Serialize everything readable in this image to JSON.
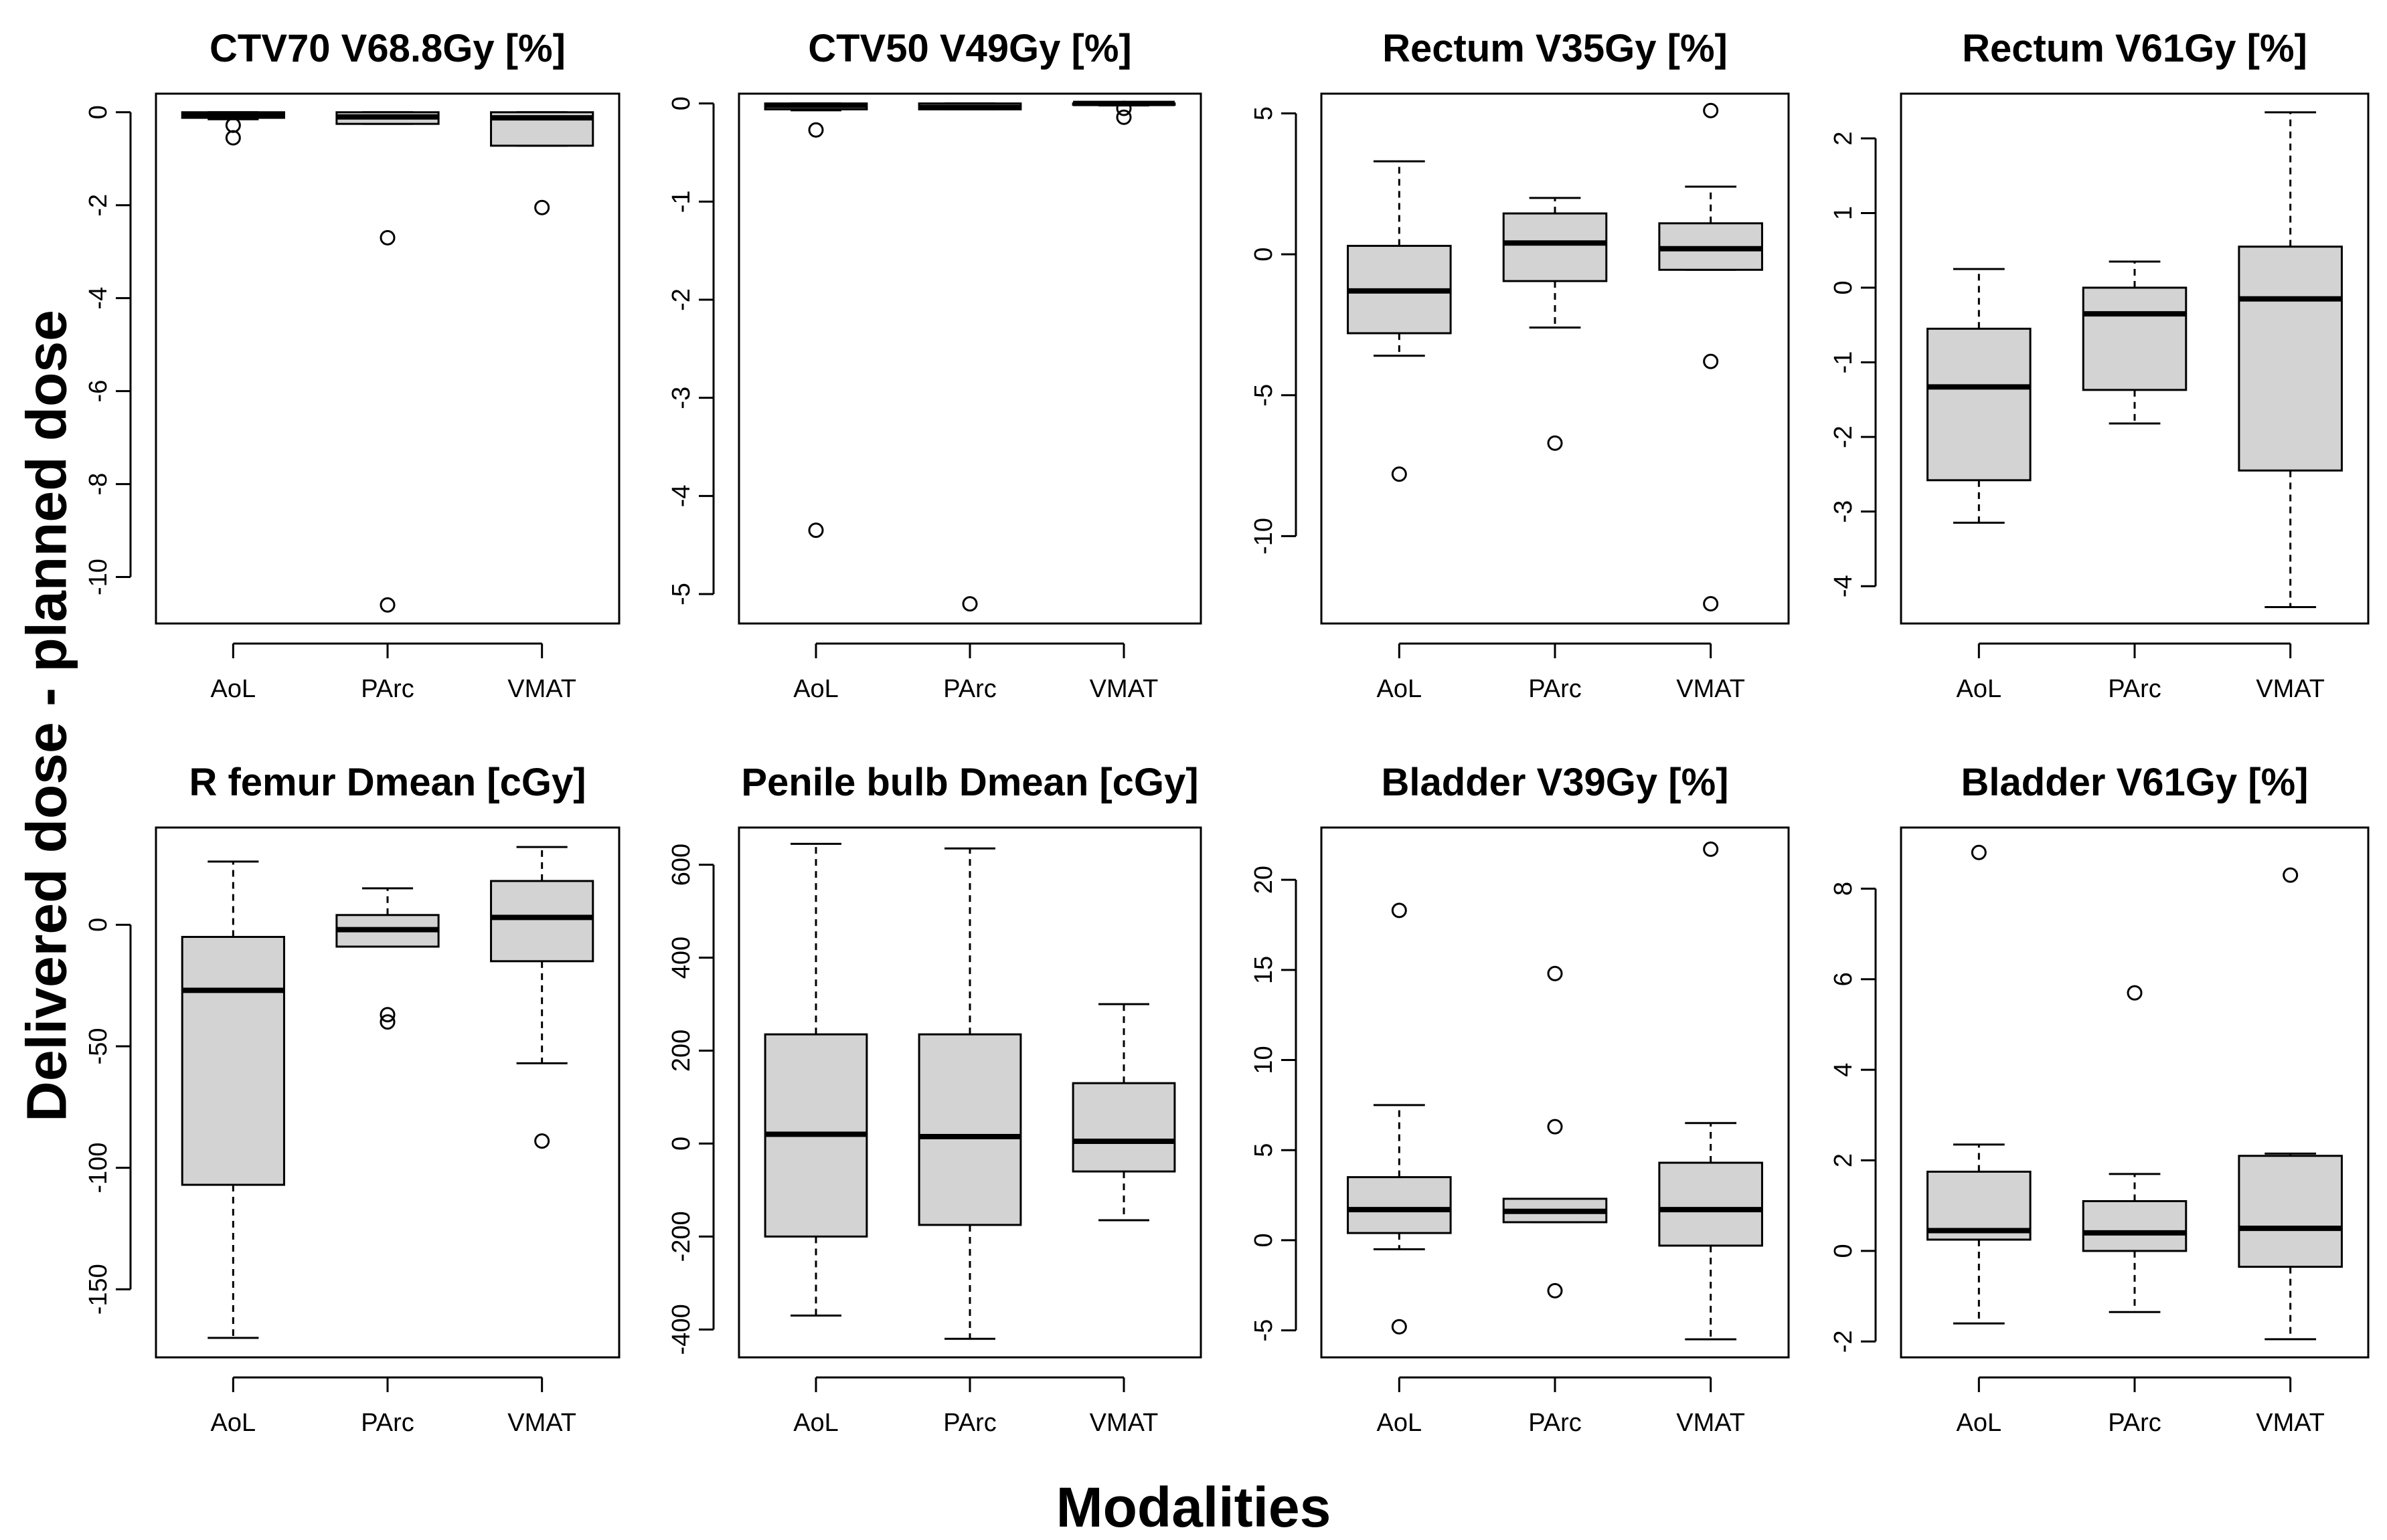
{
  "figure": {
    "ylabel": "Delivered dose - planned dose",
    "xlabel": "Modalities"
  },
  "style": {
    "box_fill": "#d3d3d3",
    "line_color": "#000000"
  },
  "chart_data": [
    {
      "type": "box",
      "title": "CTV70 V68.8Gy [%]",
      "categories": [
        "AoL",
        "PArc",
        "VMAT"
      ],
      "ylim": [
        -11,
        0.4
      ],
      "yticks": [
        0,
        -2,
        -4,
        -6,
        -8,
        -10
      ],
      "boxes": [
        {
          "whislo": -0.15,
          "q1": -0.12,
          "med": -0.05,
          "q3": 0.0,
          "whishi": 0.0,
          "fliers": [
            -0.28,
            -0.55
          ]
        },
        {
          "whislo": -0.25,
          "q1": -0.25,
          "med": -0.1,
          "q3": 0.0,
          "whishi": 0.0,
          "fliers": [
            -2.7,
            -10.6
          ]
        },
        {
          "whislo": -0.72,
          "q1": -0.72,
          "med": -0.12,
          "q3": 0.0,
          "whishi": 0.0,
          "fliers": [
            -2.05
          ]
        }
      ]
    },
    {
      "type": "box",
      "title": "CTV50 V49Gy [%]",
      "categories": [
        "AoL",
        "PArc",
        "VMAT"
      ],
      "ylim": [
        -5.3,
        0.1
      ],
      "yticks": [
        0,
        -1,
        -2,
        -3,
        -4,
        -5
      ],
      "boxes": [
        {
          "whislo": -0.07,
          "q1": -0.06,
          "med": -0.02,
          "q3": 0.0,
          "whishi": 0.0,
          "fliers": [
            -0.27,
            -4.35
          ]
        },
        {
          "whislo": -0.06,
          "q1": -0.06,
          "med": -0.04,
          "q3": 0.0,
          "whishi": 0.0,
          "fliers": [
            -5.1
          ]
        },
        {
          "whislo": -0.02,
          "q1": -0.01,
          "med": 0.0,
          "q3": 0.0,
          "whishi": 0.0,
          "fliers": [
            -0.05,
            -0.14
          ]
        }
      ]
    },
    {
      "type": "box",
      "title": "Rectum V35Gy [%]",
      "categories": [
        "AoL",
        "PArc",
        "VMAT"
      ],
      "ylim": [
        -13.1,
        5.7
      ],
      "yticks": [
        5,
        0,
        -5,
        -10
      ],
      "boxes": [
        {
          "whislo": -3.6,
          "q1": -2.8,
          "med": -1.3,
          "q3": 0.3,
          "whishi": 3.3,
          "fliers": [
            -7.8
          ]
        },
        {
          "whislo": -2.6,
          "q1": -0.95,
          "med": 0.4,
          "q3": 1.45,
          "whishi": 2.0,
          "fliers": [
            -6.7
          ]
        },
        {
          "whislo": -0.55,
          "q1": -0.55,
          "med": 0.2,
          "q3": 1.1,
          "whishi": 2.4,
          "fliers": [
            5.1,
            -3.8,
            -12.4
          ]
        }
      ]
    },
    {
      "type": "box",
      "title": "Rectum V61Gy [%]",
      "categories": [
        "AoL",
        "PArc",
        "VMAT"
      ],
      "ylim": [
        -4.5,
        2.6
      ],
      "yticks": [
        2,
        1,
        0,
        -1,
        -2,
        -3,
        -4
      ],
      "boxes": [
        {
          "whislo": -3.15,
          "q1": -2.58,
          "med": -1.33,
          "q3": -0.55,
          "whishi": 0.25,
          "fliers": []
        },
        {
          "whislo": -1.82,
          "q1": -1.37,
          "med": -0.35,
          "q3": 0.0,
          "whishi": 0.35,
          "fliers": []
        },
        {
          "whislo": -4.28,
          "q1": -2.45,
          "med": -0.15,
          "q3": 0.55,
          "whishi": 2.35,
          "fliers": []
        }
      ]
    },
    {
      "type": "box",
      "title": "R femur Dmean [cGy]",
      "categories": [
        "AoL",
        "PArc",
        "VMAT"
      ],
      "ylim": [
        -178,
        40
      ],
      "yticks": [
        0,
        -50,
        -100,
        -150
      ],
      "boxes": [
        {
          "whislo": -170,
          "q1": -107,
          "med": -27,
          "q3": -5,
          "whishi": 26,
          "fliers": []
        },
        {
          "whislo": -9,
          "q1": -9,
          "med": -2,
          "q3": 4,
          "whishi": 15,
          "fliers": [
            -37,
            -40
          ]
        },
        {
          "whislo": -57,
          "q1": -15,
          "med": 3,
          "q3": 18,
          "whishi": 32,
          "fliers": [
            -89
          ]
        }
      ]
    },
    {
      "type": "box",
      "title": "Penile bulb Dmean [cGy]",
      "categories": [
        "AoL",
        "PArc",
        "VMAT"
      ],
      "ylim": [
        -460,
        680
      ],
      "yticks": [
        600,
        400,
        200,
        0,
        -200,
        -400
      ],
      "boxes": [
        {
          "whislo": -370,
          "q1": -200,
          "med": 20,
          "q3": 235,
          "whishi": 645,
          "fliers": []
        },
        {
          "whislo": -420,
          "q1": -175,
          "med": 15,
          "q3": 235,
          "whishi": 635,
          "fliers": []
        },
        {
          "whislo": -165,
          "q1": -60,
          "med": 5,
          "q3": 130,
          "whishi": 300,
          "fliers": []
        }
      ]
    },
    {
      "type": "box",
      "title": "Bladder V39Gy [%]",
      "categories": [
        "AoL",
        "PArc",
        "VMAT"
      ],
      "ylim": [
        -6.5,
        22.9
      ],
      "yticks": [
        20,
        15,
        10,
        5,
        0,
        -5
      ],
      "boxes": [
        {
          "whislo": -0.5,
          "q1": 0.4,
          "med": 1.7,
          "q3": 3.5,
          "whishi": 7.5,
          "fliers": [
            18.3,
            -4.8
          ]
        },
        {
          "whislo": 1.0,
          "q1": 1.0,
          "med": 1.6,
          "q3": 2.3,
          "whishi": 2.3,
          "fliers": [
            14.8,
            6.3,
            -2.8
          ]
        },
        {
          "whislo": -5.5,
          "q1": -0.3,
          "med": 1.7,
          "q3": 4.3,
          "whishi": 6.5,
          "fliers": [
            21.7
          ]
        }
      ]
    },
    {
      "type": "box",
      "title": "Bladder V61Gy [%]",
      "categories": [
        "AoL",
        "PArc",
        "VMAT"
      ],
      "ylim": [
        -2.35,
        9.35
      ],
      "yticks": [
        8,
        6,
        4,
        2,
        0,
        -2
      ],
      "boxes": [
        {
          "whislo": -1.6,
          "q1": 0.25,
          "med": 0.45,
          "q3": 1.75,
          "whishi": 2.35,
          "fliers": [
            8.8
          ]
        },
        {
          "whislo": -1.35,
          "q1": 0.0,
          "med": 0.4,
          "q3": 1.1,
          "whishi": 1.7,
          "fliers": [
            5.7
          ]
        },
        {
          "whislo": -1.95,
          "q1": -0.35,
          "med": 0.5,
          "q3": 2.1,
          "whishi": 2.15,
          "fliers": [
            8.3
          ]
        }
      ]
    }
  ]
}
